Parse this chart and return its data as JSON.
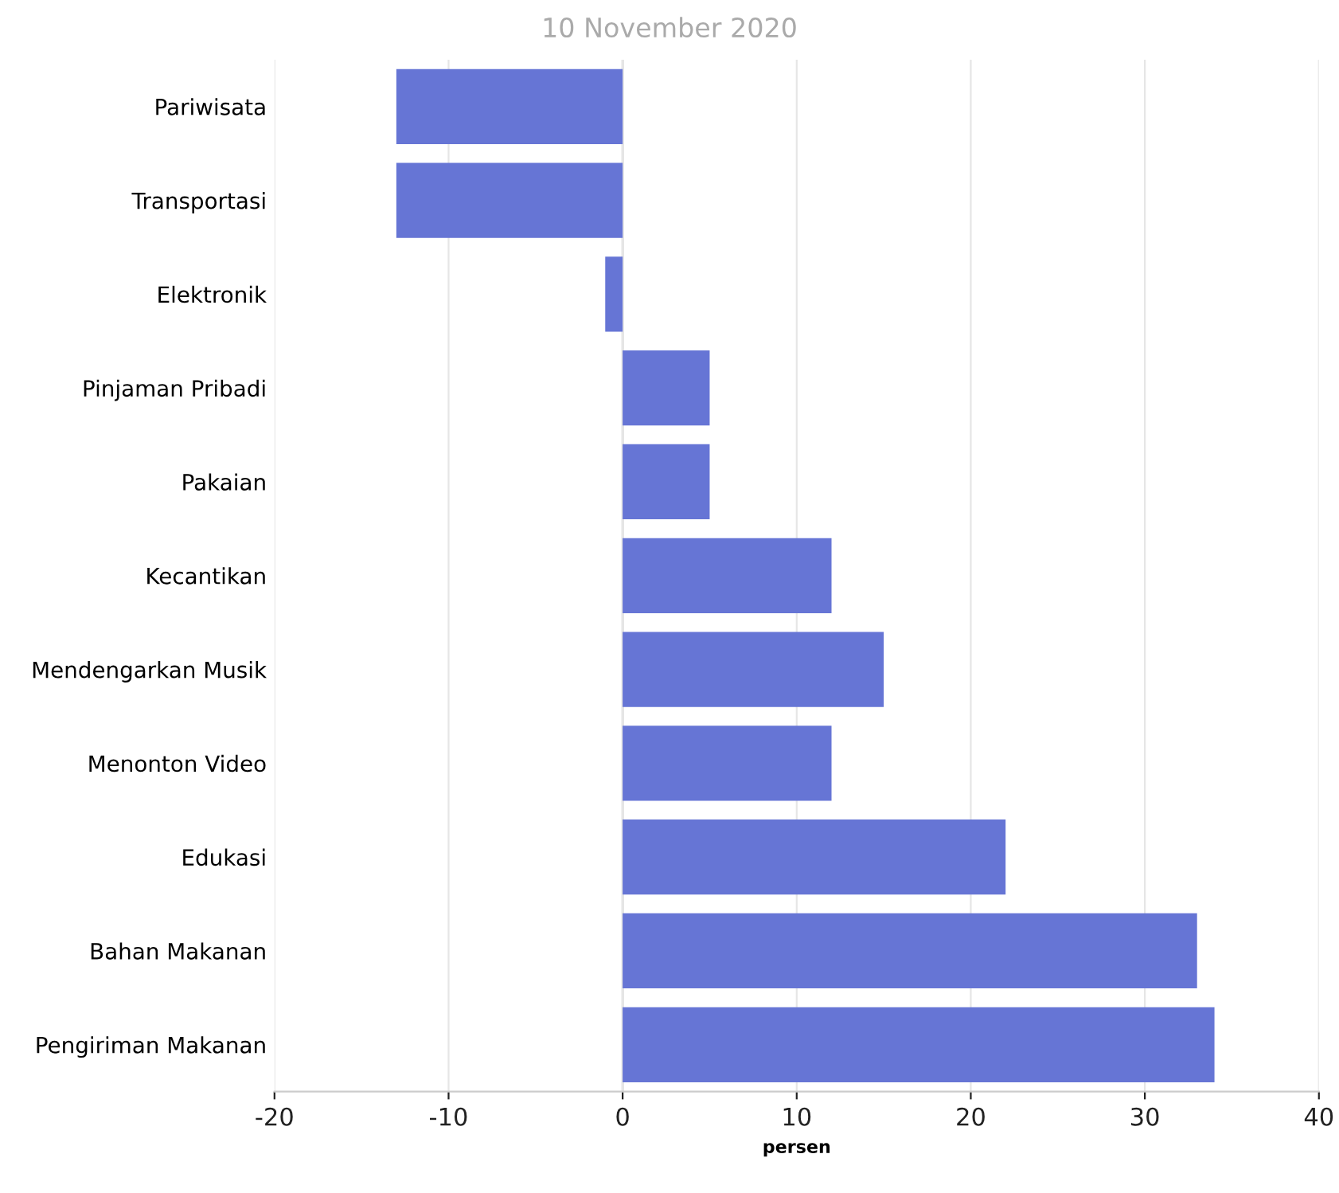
{
  "chart_data": {
    "type": "bar",
    "orientation": "horizontal",
    "categories": [
      "Pariwisata",
      "Transportasi",
      "Elektronik",
      "Pinjaman Pribadi",
      "Pakaian",
      "Kecantikan",
      "Mendengarkan Musik",
      "Menonton Video",
      "Edukasi",
      "Bahan Makanan",
      "Pengiriman Makanan"
    ],
    "values": [
      -13,
      -13,
      -1,
      5,
      5,
      12,
      15,
      12,
      22,
      33,
      34
    ],
    "color": "#6171d4",
    "xlim": [
      -20,
      40
    ],
    "xticks": [
      -20,
      -10,
      0,
      10,
      20,
      30,
      40
    ],
    "xlabel": "persen",
    "grid": "x",
    "annotations": [
      "10 November 2020"
    ]
  }
}
